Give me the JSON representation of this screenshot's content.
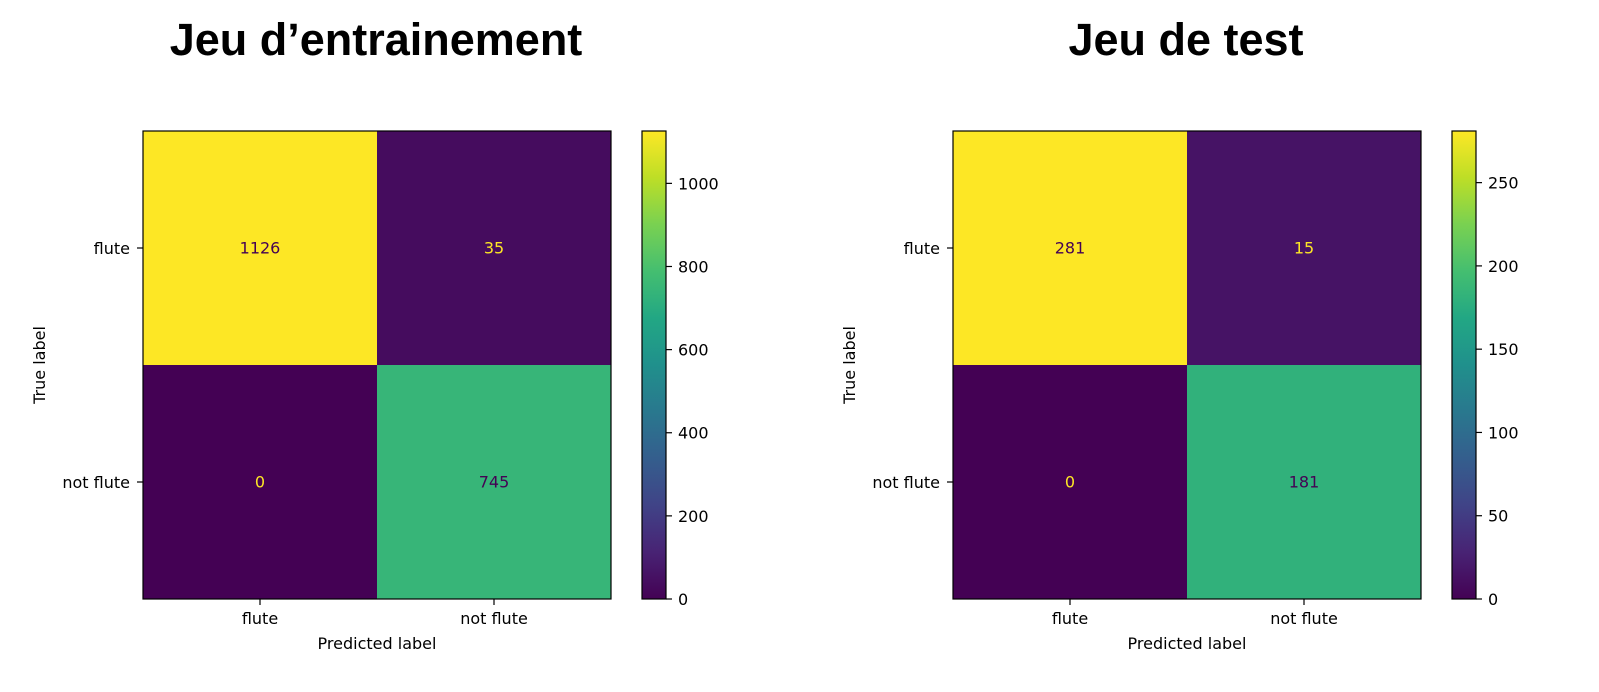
{
  "chart_data": [
    {
      "type": "heatmap",
      "title": "Jeu d’entrainement",
      "xlabel": "Predicted label",
      "ylabel": "True label",
      "x_categories": [
        "flute",
        "not flute"
      ],
      "y_categories": [
        "flute",
        "not flute"
      ],
      "values": [
        [
          1126,
          35
        ],
        [
          0,
          745
        ]
      ],
      "colorbar": {
        "colormap": "viridis",
        "vmin": 0,
        "vmax": 1126,
        "ticks": [
          0,
          200,
          400,
          600,
          800,
          1000
        ]
      },
      "grid": false
    },
    {
      "type": "heatmap",
      "title": "Jeu de test",
      "xlabel": "Predicted label",
      "ylabel": "True label",
      "x_categories": [
        "flute",
        "not flute"
      ],
      "y_categories": [
        "flute",
        "not flute"
      ],
      "values": [
        [
          281,
          15
        ],
        [
          0,
          181
        ]
      ],
      "colorbar": {
        "colormap": "viridis",
        "vmin": 0,
        "vmax": 281,
        "ticks": [
          0,
          50,
          100,
          150,
          200,
          250
        ]
      },
      "grid": false
    }
  ],
  "colors": {
    "axis": "#000000",
    "text_on_dark": "#fde725",
    "text_on_light": "#440154"
  }
}
